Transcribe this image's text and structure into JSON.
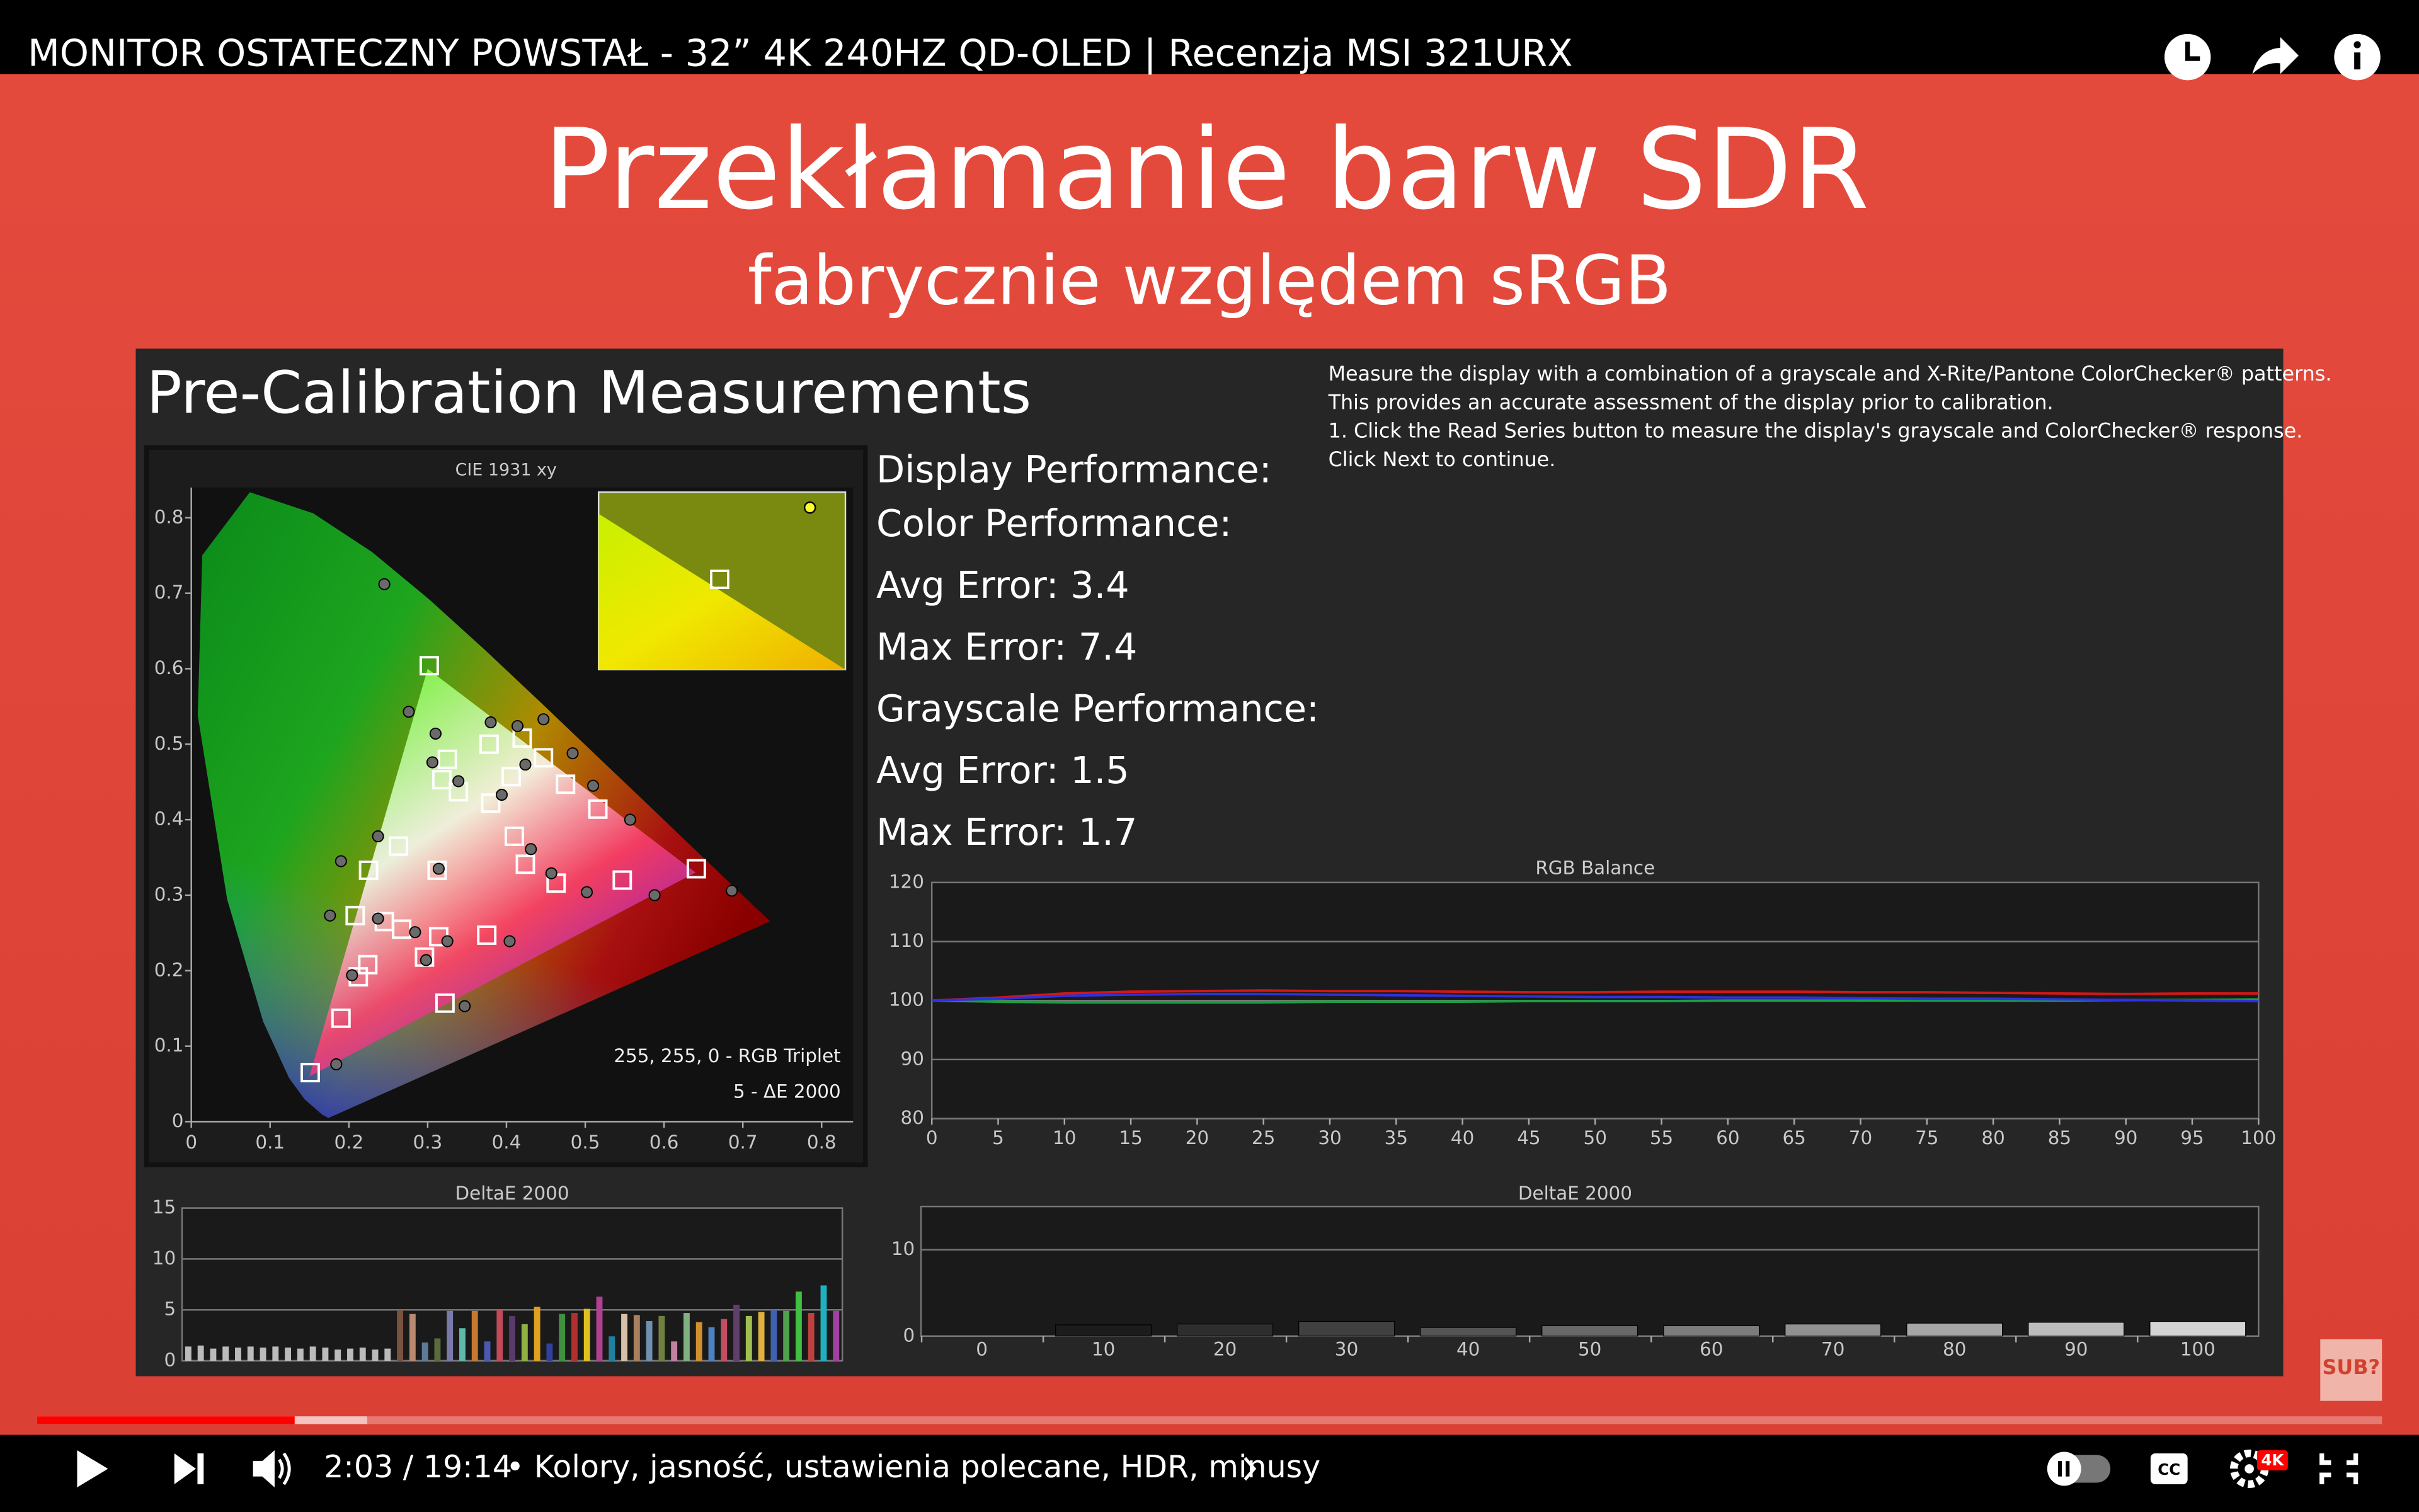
{
  "player": {
    "title": "MONITOR OSTATECZNY POWSTAŁ - 32” 4K 240HZ QD-OLED | Recenzja MSI 321URX",
    "time": "2:03 / 19:14",
    "chapter": "• Kolory, jasność, ustawienia polecane, HDR, minusy",
    "quality_badge": "4K",
    "corner_logo": "SUB?"
  },
  "slide": {
    "title": "Przekłamanie barw SDR",
    "subtitle": "fabrycznie względem sRGB"
  },
  "panel": {
    "heading": "Pre-Calibration Measurements",
    "instructions": [
      "Measure the display with a combination of a grayscale and X-Rite/Pantone ColorChecker® patterns.",
      "This provides an accurate assessment of the display prior to calibration.",
      "1. Click the Read Series button to measure the display's grayscale and ColorChecker® response.",
      "Click Next to continue."
    ],
    "stats": [
      "Display Performance:",
      "Color Performance:",
      "Avg Error: 3.4",
      "Max Error: 7.4",
      "Grayscale Performance:",
      "Avg Error: 1.5",
      "Max Error: 1.7"
    ]
  },
  "charts": [
    {
      "type": "scatter",
      "title": "CIE 1931 xy",
      "annotations": [
        "255, 255, 0 - RGB Triplet",
        "5 - ΔE 2000"
      ],
      "xlim": [
        0,
        0.84
      ],
      "ylim": [
        0,
        0.84
      ],
      "xticks": [
        0,
        0.1,
        0.2,
        0.3,
        0.4,
        0.5,
        0.6,
        0.7,
        0.8
      ],
      "yticks": [
        0,
        0.1,
        0.2,
        0.3,
        0.4,
        0.5,
        0.6,
        0.7,
        0.8
      ],
      "series": [
        {
          "marker": "square",
          "color": "#ffffff",
          "x": [
            0.302,
            0.641,
            0.151,
            0.312,
            0.19,
            0.322,
            0.375,
            0.547,
            0.516,
            0.475,
            0.447,
            0.42,
            0.378,
            0.325,
            0.318,
            0.339,
            0.38,
            0.406,
            0.263,
            0.225,
            0.208,
            0.245,
            0.267,
            0.314,
            0.296,
            0.224,
            0.212,
            0.424,
            0.463,
            0.41
          ],
          "y": [
            0.604,
            0.335,
            0.065,
            0.333,
            0.137,
            0.157,
            0.247,
            0.32,
            0.414,
            0.447,
            0.482,
            0.508,
            0.5,
            0.48,
            0.453,
            0.437,
            0.422,
            0.457,
            0.365,
            0.333,
            0.273,
            0.265,
            0.255,
            0.245,
            0.218,
            0.208,
            0.192,
            0.341,
            0.316,
            0.378
          ]
        },
        {
          "marker": "circle",
          "color": "#6a6a6a",
          "x": [
            0.245,
            0.276,
            0.686,
            0.184,
            0.314,
            0.31,
            0.306,
            0.339,
            0.38,
            0.447,
            0.484,
            0.51,
            0.557,
            0.588,
            0.502,
            0.394,
            0.424,
            0.414,
            0.431,
            0.457,
            0.404,
            0.347,
            0.298,
            0.325,
            0.237,
            0.19,
            0.176,
            0.204,
            0.237,
            0.284
          ],
          "y": [
            0.712,
            0.543,
            0.306,
            0.076,
            0.335,
            0.514,
            0.476,
            0.451,
            0.529,
            0.533,
            0.488,
            0.445,
            0.4,
            0.3,
            0.304,
            0.433,
            0.473,
            0.524,
            0.361,
            0.329,
            0.239,
            0.153,
            0.214,
            0.239,
            0.378,
            0.345,
            0.273,
            0.194,
            0.269,
            0.251
          ]
        }
      ]
    },
    {
      "type": "line",
      "title": "RGB Balance",
      "x": [
        0,
        5,
        10,
        15,
        20,
        25,
        30,
        35,
        40,
        45,
        50,
        55,
        60,
        65,
        70,
        75,
        80,
        85,
        90,
        95,
        100
      ],
      "xlim": [
        0,
        100
      ],
      "ylim": [
        80,
        120
      ],
      "xticks": [
        0,
        5,
        10,
        15,
        20,
        25,
        30,
        35,
        40,
        45,
        50,
        55,
        60,
        65,
        70,
        75,
        80,
        85,
        90,
        95,
        100
      ],
      "yticks": [
        80,
        90,
        100,
        110,
        120
      ],
      "grid": true,
      "series": [
        {
          "color": "#d01818",
          "values": [
            100,
            100.5,
            101.2,
            101.5,
            101.6,
            101.7,
            101.6,
            101.6,
            101.5,
            101.4,
            101.4,
            101.5,
            101.5,
            101.5,
            101.4,
            101.4,
            101.3,
            101.2,
            101.1,
            101.2,
            101.2
          ]
        },
        {
          "color": "#18a040",
          "values": [
            100,
            99.8,
            99.7,
            99.7,
            99.7,
            99.7,
            99.8,
            99.8,
            99.8,
            99.9,
            99.9,
            99.9,
            100,
            100,
            100,
            100,
            100,
            100,
            100.1,
            100.1,
            100.2
          ]
        },
        {
          "color": "#3030e0",
          "values": [
            100,
            100.3,
            100.8,
            101,
            101.1,
            101.1,
            101,
            100.9,
            100.8,
            100.7,
            100.6,
            100.6,
            100.5,
            100.5,
            100.4,
            100.3,
            100.3,
            100.2,
            100.1,
            100,
            99.9
          ]
        }
      ]
    },
    {
      "type": "bar",
      "title": "DeltaE 2000",
      "ylim": [
        0,
        15
      ],
      "yticks": [
        0,
        5,
        10,
        15
      ],
      "grid": true,
      "values": [
        1.4,
        1.5,
        1.2,
        1.4,
        1.3,
        1.4,
        1.3,
        1.4,
        1.3,
        1.2,
        1.4,
        1.3,
        1.1,
        1.2,
        1.3,
        1.1,
        1.2,
        5.0,
        4.6,
        1.8,
        2.2,
        4.9,
        3.2,
        4.9,
        1.9,
        5.0,
        4.4,
        3.6,
        5.3,
        1.7,
        4.6,
        4.7,
        5.1,
        6.3,
        2.4,
        4.6,
        4.5,
        3.9,
        4.4,
        1.9,
        4.7,
        3.8,
        3.3,
        4.1,
        5.5,
        4.4,
        4.8,
        5.0,
        4.9,
        6.8,
        4.7,
        7.4,
        4.9
      ],
      "colors": [
        "#bbbbbb",
        "#bbbbbb",
        "#bbbbbb",
        "#bbbbbb",
        "#bbbbbb",
        "#bbbbbb",
        "#bbbbbb",
        "#bbbbbb",
        "#bbbbbb",
        "#bbbbbb",
        "#bbbbbb",
        "#bbbbbb",
        "#bbbbbb",
        "#bbbbbb",
        "#bbbbbb",
        "#bbbbbb",
        "#bbbbbb",
        "#7a5240",
        "#b88a70",
        "#5f7a99",
        "#5b6b3d",
        "#7a7aa8",
        "#60b8a8",
        "#c87830",
        "#4a5ab0",
        "#c04a5a",
        "#5a3a6a",
        "#90b040",
        "#e0a020",
        "#3040a0",
        "#409040",
        "#b03030",
        "#e0c020",
        "#b04090",
        "#2080a0",
        "#d8c0a8",
        "#a88060",
        "#7090b0",
        "#708040",
        "#c080a0",
        "#80b080",
        "#d09030",
        "#5080c0",
        "#c05060",
        "#60406a",
        "#a0c050",
        "#e0b040",
        "#4060b0",
        "#50a050",
        "#40c040",
        "#c04040",
        "#20b0c0",
        "#a040a0"
      ]
    },
    {
      "type": "bar",
      "title": "DeltaE 2000",
      "x": [
        10,
        20,
        30,
        40,
        50,
        60,
        70,
        80,
        90,
        100
      ],
      "values": [
        1.3,
        1.4,
        1.7,
        1.0,
        1.2,
        1.2,
        1.4,
        1.5,
        1.6,
        1.7
      ],
      "colors": [
        "#1c1c1c",
        "#2e2e2e",
        "#404040",
        "#555555",
        "#686868",
        "#7c7c7c",
        "#919191",
        "#a6a6a6",
        "#bcbcbc",
        "#d4d4d4"
      ],
      "xlim": [
        -5,
        105
      ],
      "ylim": [
        0,
        15
      ],
      "xticks": [
        0,
        10,
        20,
        30,
        40,
        50,
        60,
        70,
        80,
        90,
        100
      ],
      "yticks": [
        0,
        10
      ],
      "grid": true
    }
  ]
}
